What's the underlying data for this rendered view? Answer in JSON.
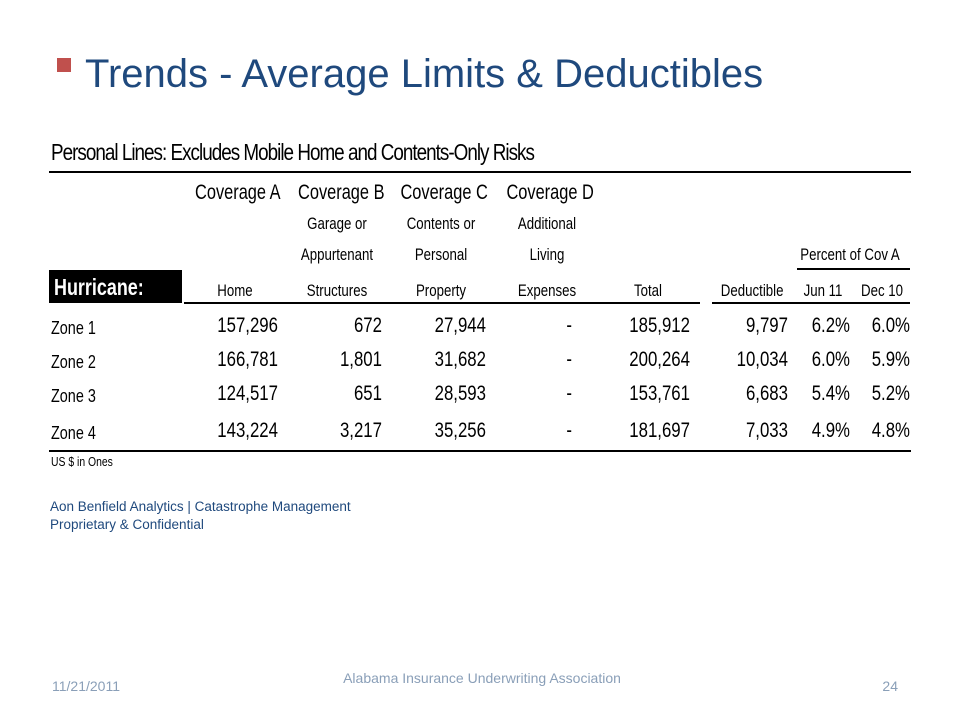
{
  "slide": {
    "title": "Trends - Average Limits & Deductibles"
  },
  "table": {
    "title": "Personal Lines: Excludes Mobile Home and Contents-Only Risks",
    "section_label": "Hurricane:",
    "headers": {
      "coverage_a": {
        "line1": "Coverage A",
        "bottom": "Home"
      },
      "coverage_b": {
        "line1": "Coverage B",
        "line2": "Garage or",
        "line3": "Appurtenant",
        "bottom": "Structures"
      },
      "coverage_c": {
        "line1": "Coverage C",
        "line2": "Contents or",
        "line3": "Personal",
        "bottom": "Property"
      },
      "coverage_d": {
        "line1": "Coverage D",
        "line2": "Additional",
        "line3": "Living",
        "bottom": "Expenses"
      },
      "total": {
        "bottom": "Total"
      },
      "deductible": {
        "bottom": "Deductible"
      },
      "percent_group": "Percent of Cov A",
      "jun11": {
        "bottom": "Jun 11"
      },
      "dec10": {
        "bottom": "Dec 10"
      }
    },
    "rows": [
      {
        "zone": "Zone 1",
        "a": "157,296",
        "b": "672",
        "c": "27,944",
        "d": "-",
        "total": "185,912",
        "deductible": "9,797",
        "jun11": "6.2%",
        "dec10": "6.0%"
      },
      {
        "zone": "Zone 2",
        "a": "166,781",
        "b": "1,801",
        "c": "31,682",
        "d": "-",
        "total": "200,264",
        "deductible": "10,034",
        "jun11": "6.0%",
        "dec10": "5.9%"
      },
      {
        "zone": "Zone 3",
        "a": "124,517",
        "b": "651",
        "c": "28,593",
        "d": "-",
        "total": "153,761",
        "deductible": "6,683",
        "jun11": "5.4%",
        "dec10": "5.2%"
      },
      {
        "zone": "Zone 4",
        "a": "143,224",
        "b": "3,217",
        "c": "35,256",
        "d": "-",
        "total": "181,697",
        "deductible": "7,033",
        "jun11": "4.9%",
        "dec10": "4.8%"
      }
    ],
    "units_note": "US $ in Ones"
  },
  "footer": {
    "source_line1": "Aon Benfield Analytics  |  Catastrophe Management",
    "source_line2": "Proprietary & Confidential",
    "date": "11/21/2011",
    "organization": "Alabama Insurance Underwriting Association",
    "page_number": "24"
  },
  "colors": {
    "title": "#1f497d",
    "bullet": "#c0504d",
    "footer_text": "#8a9fb8"
  }
}
